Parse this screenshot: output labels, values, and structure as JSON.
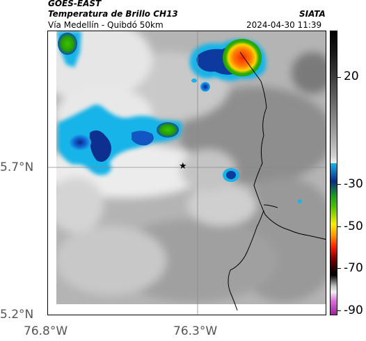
{
  "header": {
    "satellite": "GOES-EAST",
    "product": "Temperatura de Brillo CH13",
    "route": "Vía Medellín - Quibdó 50km",
    "org": "SIATA",
    "datetime": "2024-04-30 11:39"
  },
  "axes": {
    "y_ticks": [
      "5.7°N",
      "5.2°N"
    ],
    "x_ticks": [
      "76.8°W",
      "76.3°W"
    ]
  },
  "colorbar": {
    "ticks": [
      "20",
      "-30",
      "-50",
      "-70",
      "-90"
    ]
  },
  "marker": {
    "symbol": "★",
    "name": "location-star"
  }
}
